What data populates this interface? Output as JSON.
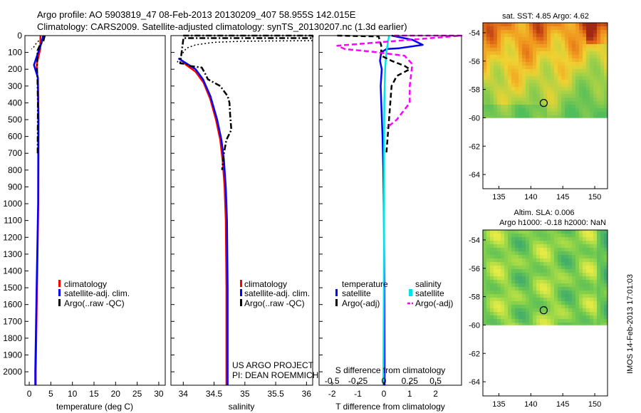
{
  "header": {
    "line1": "Argo profile: AO 5903819_47 08-Feb-2013 20130209_407 58.955S 142.015E",
    "line2": "Climatology: CARS2009. Satellite-adjusted climatology: synTS_20130207.nc (1.3d earlier)"
  },
  "project": {
    "line1": "US ARGO PROJECT",
    "line2": "PI: DEAN ROEMMICH"
  },
  "stamp": "IMOS 14-Feb-2013 17:01:03",
  "colors": {
    "climatology": "#ff0000",
    "satellite": "#0000ff",
    "argo": "#000000",
    "satellite_s": "#00e5e5",
    "argo_s": "#ff00ff"
  },
  "chart_data": [
    {
      "type": "line",
      "id": "temperature",
      "xlabel": "temperature (deg C)",
      "xlim": [
        -1,
        31.5
      ],
      "ylim": [
        2080,
        0
      ],
      "xticks": [
        0,
        5,
        10,
        15,
        20,
        25,
        30
      ],
      "yticks": [
        0,
        100,
        200,
        300,
        400,
        500,
        600,
        700,
        800,
        900,
        1000,
        1100,
        1200,
        1300,
        1400,
        1500,
        1600,
        1700,
        1800,
        1900,
        2000
      ],
      "legend": [
        "climatology",
        "satellite-adj. clim.",
        "Argo(..raw -QC)"
      ],
      "series": [
        {
          "name": "climatology",
          "color": "#ff0000",
          "style": "solid",
          "points": [
            [
              2.6,
              0
            ],
            [
              2.55,
              80
            ],
            [
              1.8,
              160
            ],
            [
              1.7,
              200
            ],
            [
              2.0,
              260
            ],
            [
              2.15,
              500
            ],
            [
              2.1,
              1000
            ],
            [
              1.8,
              1500
            ],
            [
              1.5,
              2000
            ],
            [
              1.5,
              2080
            ]
          ]
        },
        {
          "name": "satellite-adj. clim.",
          "color": "#0000ff",
          "style": "solid",
          "points": [
            [
              3.2,
              0
            ],
            [
              2.9,
              40
            ],
            [
              1.8,
              120
            ],
            [
              1.1,
              175
            ],
            [
              1.4,
              200
            ],
            [
              2.0,
              250
            ],
            [
              2.1,
              500
            ],
            [
              2.05,
              1000
            ],
            [
              1.7,
              1500
            ],
            [
              1.4,
              2000
            ],
            [
              1.4,
              2080
            ]
          ]
        },
        {
          "name": "Argo(..raw -QC)",
          "color": "#000000",
          "style": "dashdot",
          "points": [
            [
              3.6,
              0
            ],
            [
              3.3,
              30
            ],
            [
              2.5,
              55
            ],
            [
              1.9,
              90
            ],
            [
              1.8,
              200
            ],
            [
              1.9,
              250
            ],
            [
              2.0,
              400
            ],
            [
              1.95,
              700
            ]
          ]
        },
        {
          "name": "",
          "color": "#000000",
          "style": "dotted",
          "points": [
            [
              2.2,
              30
            ],
            [
              1.5,
              50
            ],
            [
              1.0,
              70
            ],
            [
              0.5,
              80
            ]
          ]
        }
      ]
    },
    {
      "type": "line",
      "id": "salinity",
      "xlabel": "salinity",
      "xlim": [
        33.8,
        36.1
      ],
      "ylim": [
        2080,
        0
      ],
      "xticks": [
        34,
        34.5,
        35,
        35.5,
        36
      ],
      "legend": [
        "climatology",
        "satellite-adj. clim.",
        "Argo(..raw -QC)"
      ],
      "series": [
        {
          "name": "climatology",
          "color": "#ff0000",
          "style": "solid",
          "points": [
            [
              33.95,
              140
            ],
            [
              34.05,
              175
            ],
            [
              34.2,
              215
            ],
            [
              34.33,
              280
            ],
            [
              34.44,
              380
            ],
            [
              34.53,
              500
            ],
            [
              34.6,
              620
            ],
            [
              34.64,
              750
            ],
            [
              34.67,
              900
            ],
            [
              34.69,
              1100
            ],
            [
              34.7,
              1500
            ],
            [
              34.7,
              2000
            ],
            [
              34.7,
              2080
            ]
          ]
        },
        {
          "name": "satellite-adj. clim.",
          "color": "#0000ff",
          "style": "solid",
          "points": [
            [
              33.92,
              135
            ],
            [
              34.05,
              165
            ],
            [
              34.2,
              200
            ],
            [
              34.32,
              260
            ],
            [
              34.44,
              360
            ],
            [
              34.55,
              500
            ],
            [
              34.62,
              620
            ],
            [
              34.66,
              740
            ],
            [
              34.69,
              900
            ],
            [
              34.71,
              1100
            ],
            [
              34.72,
              1500
            ],
            [
              34.72,
              2000
            ],
            [
              34.72,
              2080
            ]
          ]
        },
        {
          "name": "Argo(..raw -QC)",
          "color": "#000000",
          "style": "dashdot",
          "points": [
            [
              34.0,
              0
            ],
            [
              36.1,
              0
            ],
            [
              36.1,
              15
            ],
            [
              34.0,
              15
            ],
            [
              34.0,
              25
            ],
            [
              33.95,
              165
            ],
            [
              34.05,
              170
            ],
            [
              34.1,
              180
            ],
            [
              34.3,
              190
            ],
            [
              34.36,
              230
            ],
            [
              34.4,
              260
            ],
            [
              34.6,
              300
            ],
            [
              34.72,
              360
            ],
            [
              34.75,
              400
            ],
            [
              34.76,
              470
            ],
            [
              34.78,
              560
            ],
            [
              34.7,
              620
            ],
            [
              34.66,
              700
            ],
            [
              34.63,
              800
            ]
          ]
        },
        {
          "name": "",
          "color": "#000000",
          "style": "dotted",
          "points": [
            [
              36.1,
              30
            ],
            [
              35.0,
              33
            ],
            [
              34.5,
              40
            ],
            [
              34.2,
              55
            ],
            [
              34.05,
              75
            ],
            [
              34.0,
              100
            ],
            [
              33.9,
              160
            ]
          ]
        }
      ],
      "annotations": [
        {
          "label": "US ARGO PROJECT / PI: DEAN ROEMMICH"
        }
      ]
    },
    {
      "type": "line",
      "id": "differences",
      "xlabel": "T difference from climatology",
      "xlabel_top": "S difference from climatology",
      "xlim": [
        -2.5,
        3
      ],
      "ylim": [
        2080,
        0
      ],
      "xticks": [
        -2,
        -1,
        0,
        1,
        2
      ],
      "xticks_top": [
        -0.5,
        -0.25,
        0,
        0.25,
        0.5
      ],
      "legend": [
        "temperature",
        "satellite",
        "Argo(-adj)",
        "salinity",
        "satellite",
        "Argo(-adj)"
      ],
      "series": [
        {
          "name": "temperature satellite",
          "color": "#0000ff",
          "style": "solid",
          "points": [
            [
              0.3,
              0
            ],
            [
              1.1,
              25
            ],
            [
              1.5,
              55
            ],
            [
              0.6,
              75
            ],
            [
              0.1,
              80
            ],
            [
              -0.1,
              100
            ],
            [
              -0.15,
              150
            ],
            [
              -0.08,
              200
            ],
            [
              -0.12,
              300
            ],
            [
              -0.1,
              400
            ],
            [
              -0.05,
              600
            ],
            [
              -0.02,
              800
            ],
            [
              0.0,
              1000
            ],
            [
              0.02,
              1500
            ],
            [
              0.03,
              2000
            ],
            [
              0.03,
              2080
            ]
          ]
        },
        {
          "name": "salinity satellite",
          "color": "#00e5e5",
          "style": "solid",
          "points": [
            [
              0.2,
              0
            ],
            [
              0.1,
              100
            ],
            [
              0.05,
              200
            ],
            [
              0.02,
              400
            ],
            [
              0.01,
              700
            ],
            [
              0.01,
              1000
            ],
            [
              0.0,
              1500
            ],
            [
              -0.02,
              2080
            ]
          ]
        },
        {
          "name": "temperature Argo(-adj)",
          "color": "#000000",
          "style": "dashed",
          "points": [
            [
              -1.8,
              0
            ],
            [
              -0.2,
              5
            ],
            [
              -0.1,
              60
            ],
            [
              -0.1,
              120
            ],
            [
              0.3,
              150
            ],
            [
              0.8,
              180
            ],
            [
              1.0,
              200
            ],
            [
              0.5,
              240
            ],
            [
              0.3,
              300
            ],
            [
              0.2,
              500
            ],
            [
              0.1,
              700
            ]
          ]
        },
        {
          "name": "salinity Argo(-adj)",
          "color": "#ff00ff",
          "style": "dashed",
          "points": [
            [
              0.4,
              0
            ],
            [
              3.0,
              0
            ],
            [
              -1.8,
              60
            ],
            [
              -1.5,
              80
            ],
            [
              -0.5,
              95
            ],
            [
              0.3,
              110
            ],
            [
              0.8,
              120
            ],
            [
              1.1,
              170
            ],
            [
              1.0,
              300
            ],
            [
              1.0,
              400
            ],
            [
              0.5,
              500
            ],
            [
              0.1,
              550
            ]
          ]
        }
      ]
    },
    {
      "type": "heatmap",
      "id": "sst-map",
      "title": "sat. SST: 4.85  Argo: 4.62",
      "xlim": [
        132.5,
        152
      ],
      "ylim": [
        -65,
        -53.3
      ],
      "xticks": [
        135,
        140,
        145,
        150
      ],
      "yticks": [
        -54,
        -56,
        -58,
        -60,
        -62,
        -64
      ],
      "data_extent": {
        "lat": [
          -60,
          -53.3
        ]
      },
      "marker": {
        "lon": 142.015,
        "lat": -58.955
      }
    },
    {
      "type": "heatmap",
      "id": "sla-map",
      "title": "Altim. SLA: 0.006",
      "subtitle": "Argo h1000: -0.18 h2000: NaN",
      "xlim": [
        132.5,
        152
      ],
      "ylim": [
        -65,
        -53.3
      ],
      "xticks": [
        135,
        140,
        145,
        150
      ],
      "yticks": [
        -54,
        -56,
        -58,
        -60,
        -62,
        -64
      ],
      "data_extent": {
        "lat": [
          -60,
          -53.3
        ]
      },
      "marker": {
        "lon": 142.015,
        "lat": -58.955
      }
    }
  ]
}
